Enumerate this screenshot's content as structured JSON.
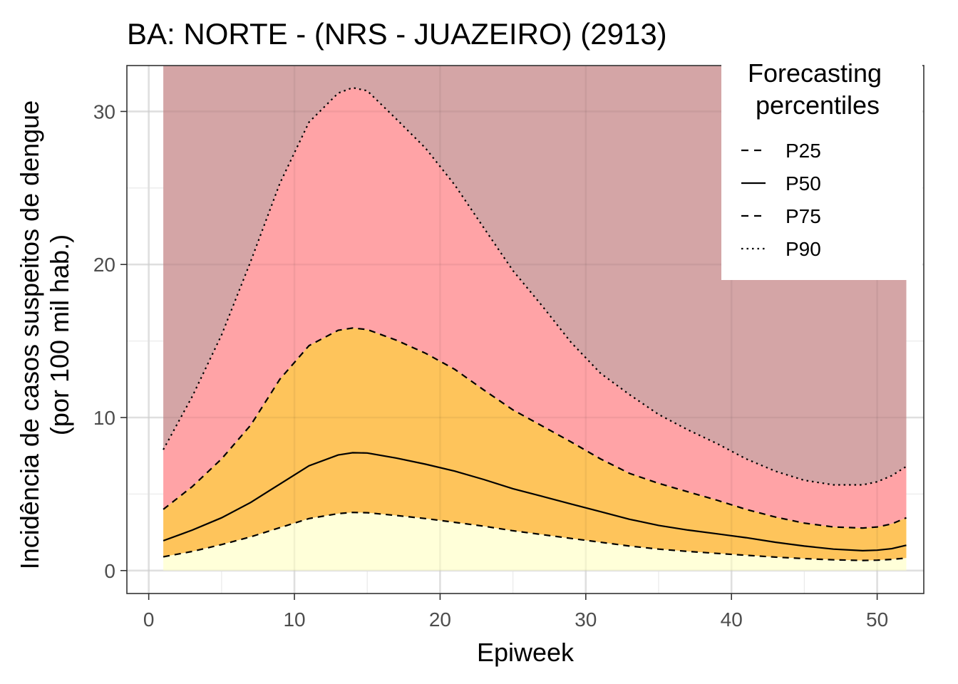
{
  "chart_data": {
    "type": "area",
    "title": "BA: NORTE - (NRS - JUAZEIRO) (2913)",
    "xlabel": "Epiweek",
    "ylabel_line1": "Incidência de casos suspeitos de dengue",
    "ylabel_line2": "(por 100 mil hab.)",
    "xlim": [
      -1.5,
      53.2
    ],
    "ylim": [
      -1.5,
      33.0
    ],
    "x_ticks": [
      0,
      10,
      20,
      30,
      40,
      50
    ],
    "x_tick_labels": [
      "0",
      "10",
      "20",
      "30",
      "40",
      "50"
    ],
    "y_ticks": [
      0,
      10,
      20,
      30
    ],
    "y_tick_labels": [
      "0",
      "10",
      "20",
      "30"
    ],
    "grid": true,
    "legend": {
      "title_line1": "Forecasting",
      "title_line2": "percentiles",
      "placement": "top-right",
      "items": [
        {
          "label": "P25",
          "dash": "dashed"
        },
        {
          "label": "P50",
          "dash": "solid"
        },
        {
          "label": "P75",
          "dash": "dashed"
        },
        {
          "label": "P90",
          "dash": "dotted"
        }
      ]
    },
    "band_colors": {
      "below_p25": "#ffffd9",
      "p25_p75": "#fec45b",
      "p75_p90": "#ffa3a6",
      "above_p90": "#d4a5a6"
    },
    "x": [
      1,
      3,
      5,
      7,
      9,
      11,
      13,
      14,
      15,
      17,
      19,
      21,
      23,
      25,
      27,
      29,
      31,
      33,
      35,
      37,
      39,
      41,
      43,
      45,
      47,
      49,
      50,
      51,
      52
    ],
    "series": [
      {
        "name": "P25",
        "dash": "dashed",
        "values": [
          0.9,
          1.25,
          1.7,
          2.2,
          2.8,
          3.4,
          3.72,
          3.8,
          3.78,
          3.6,
          3.4,
          3.15,
          2.9,
          2.6,
          2.35,
          2.1,
          1.85,
          1.6,
          1.4,
          1.25,
          1.12,
          1.0,
          0.88,
          0.78,
          0.7,
          0.66,
          0.68,
          0.73,
          0.82
        ]
      },
      {
        "name": "P50",
        "dash": "solid",
        "values": [
          1.95,
          2.65,
          3.45,
          4.45,
          5.65,
          6.85,
          7.55,
          7.7,
          7.68,
          7.35,
          6.95,
          6.5,
          5.95,
          5.35,
          4.85,
          4.35,
          3.85,
          3.35,
          2.95,
          2.65,
          2.4,
          2.15,
          1.85,
          1.6,
          1.4,
          1.3,
          1.33,
          1.43,
          1.65
        ]
      },
      {
        "name": "P75",
        "dash": "dashed",
        "values": [
          4.0,
          5.5,
          7.3,
          9.5,
          12.5,
          14.7,
          15.7,
          15.85,
          15.75,
          15.05,
          14.2,
          13.15,
          11.8,
          10.5,
          9.45,
          8.4,
          7.3,
          6.35,
          5.7,
          5.15,
          4.6,
          4.0,
          3.5,
          3.1,
          2.85,
          2.78,
          2.85,
          3.05,
          3.45
        ]
      },
      {
        "name": "P90",
        "dash": "dotted",
        "values": [
          7.9,
          11.4,
          15.4,
          20.2,
          25.3,
          29.3,
          31.2,
          31.55,
          31.35,
          29.5,
          27.6,
          25.2,
          22.4,
          19.6,
          17.3,
          14.9,
          12.9,
          11.5,
          10.2,
          9.2,
          8.3,
          7.3,
          6.5,
          5.9,
          5.6,
          5.6,
          5.8,
          6.2,
          6.8
        ]
      }
    ]
  }
}
